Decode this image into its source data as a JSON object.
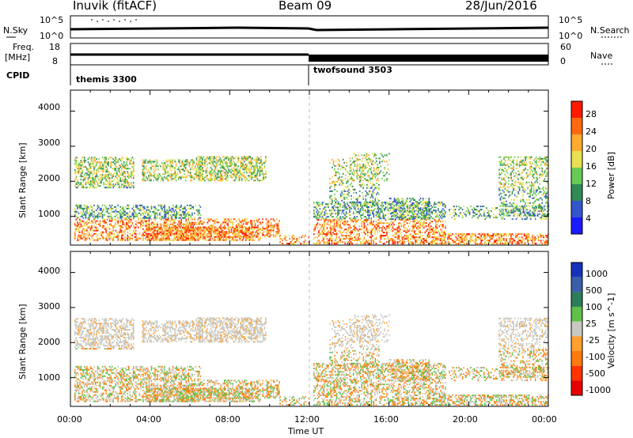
{
  "header": {
    "station": "Inuvik (fitACF)",
    "beam": "Beam 09",
    "date": "28/Jun/2016"
  },
  "summary_panels": {
    "nsky_label": "N.Sky",
    "nsky_ticks": [
      "10^5",
      "10^0"
    ],
    "nsearch_label": "N.Search",
    "nsearch_ticks": [
      "10^5",
      "10^0"
    ],
    "freq_label_1": "Freq.",
    "freq_label_2": "[MHz]",
    "freq_ticks": [
      "18",
      "8"
    ],
    "nave_label": "Nave",
    "nave_ticks": [
      "60",
      "0"
    ],
    "cpid_label": "CPID",
    "cpid_modes": [
      "themis 3300",
      "twofsound 3503"
    ]
  },
  "chart_data": [
    {
      "type": "heatmap",
      "name": "power-panel",
      "ylabel": "Slant Range [km]",
      "yticks": [
        "1000",
        "2000",
        "3000",
        "4000"
      ],
      "ylim": [
        180,
        4600
      ],
      "xlim_hours": [
        0,
        24
      ],
      "colorbar": {
        "label": "Power [dB]",
        "ticks": [
          "4",
          "8",
          "12",
          "16",
          "20",
          "24",
          "28"
        ],
        "colors": [
          "#1a1aff",
          "#3355cc",
          "#2f8a55",
          "#66cc55",
          "#e8e050",
          "#ffaa30",
          "#ff6a10",
          "#ff1a00"
        ]
      }
    },
    {
      "type": "heatmap",
      "name": "velocity-panel",
      "ylabel": "Slant Range [km]",
      "yticks": [
        "1000",
        "2000",
        "3000",
        "4000"
      ],
      "ylim": [
        180,
        4600
      ],
      "xlim_hours": [
        0,
        24
      ],
      "colorbar": {
        "label": "Velocity [m s^-1]",
        "ticks": [
          "1000",
          "500",
          "100",
          "25",
          "-25",
          "-100",
          "-500",
          "-1000"
        ],
        "colors": [
          "#1533b8",
          "#3a5fa8",
          "#2e7d5a",
          "#5fc04a",
          "#c8c8c0",
          "#ffa030",
          "#ff7a10",
          "#ff3300",
          "#e60000"
        ]
      }
    }
  ],
  "x_axis": {
    "label": "Time UT",
    "ticks": [
      "00:00",
      "04:00",
      "08:00",
      "12:00",
      "16:00",
      "20:00",
      "00:00"
    ]
  }
}
